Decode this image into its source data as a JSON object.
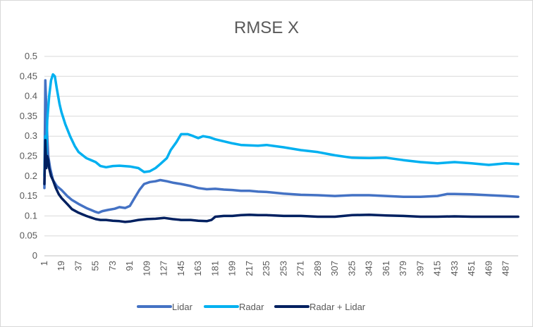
{
  "chart_data": {
    "type": "line",
    "title": "RMSE X",
    "xlabel": "",
    "ylabel": "",
    "ylim": [
      0,
      0.5
    ],
    "y_ticks": [
      "0",
      "0.05",
      "0.1",
      "0.15",
      "0.2",
      "0.25",
      "0.3",
      "0.35",
      "0.4",
      "0.45",
      "0.5"
    ],
    "x_range": [
      1,
      500
    ],
    "x_ticks": [
      "1",
      "19",
      "37",
      "55",
      "73",
      "91",
      "109",
      "127",
      "145",
      "163",
      "181",
      "199",
      "217",
      "235",
      "253",
      "271",
      "289",
      "307",
      "325",
      "343",
      "361",
      "379",
      "397",
      "415",
      "433",
      "451",
      "469",
      "487"
    ],
    "gridlines": true,
    "legend_position": "bottom",
    "series": [
      {
        "name": "Lidar",
        "color": "#4472c4",
        "points": [
          [
            1,
            0.17
          ],
          [
            2,
            0.44
          ],
          [
            3,
            0.37
          ],
          [
            4,
            0.3
          ],
          [
            5,
            0.25
          ],
          [
            7,
            0.22
          ],
          [
            10,
            0.19
          ],
          [
            14,
            0.175
          ],
          [
            19,
            0.165
          ],
          [
            25,
            0.15
          ],
          [
            30,
            0.14
          ],
          [
            37,
            0.13
          ],
          [
            45,
            0.12
          ],
          [
            50,
            0.115
          ],
          [
            55,
            0.11
          ],
          [
            58,
            0.108
          ],
          [
            62,
            0.112
          ],
          [
            68,
            0.115
          ],
          [
            75,
            0.118
          ],
          [
            80,
            0.122
          ],
          [
            86,
            0.12
          ],
          [
            91,
            0.125
          ],
          [
            96,
            0.145
          ],
          [
            101,
            0.165
          ],
          [
            106,
            0.18
          ],
          [
            112,
            0.185
          ],
          [
            118,
            0.187
          ],
          [
            123,
            0.19
          ],
          [
            130,
            0.187
          ],
          [
            137,
            0.183
          ],
          [
            145,
            0.18
          ],
          [
            155,
            0.175
          ],
          [
            163,
            0.17
          ],
          [
            172,
            0.167
          ],
          [
            181,
            0.168
          ],
          [
            190,
            0.166
          ],
          [
            199,
            0.165
          ],
          [
            208,
            0.163
          ],
          [
            217,
            0.163
          ],
          [
            226,
            0.161
          ],
          [
            235,
            0.16
          ],
          [
            253,
            0.156
          ],
          [
            271,
            0.153
          ],
          [
            289,
            0.152
          ],
          [
            307,
            0.15
          ],
          [
            325,
            0.152
          ],
          [
            343,
            0.152
          ],
          [
            361,
            0.15
          ],
          [
            379,
            0.148
          ],
          [
            397,
            0.148
          ],
          [
            415,
            0.15
          ],
          [
            425,
            0.155
          ],
          [
            433,
            0.155
          ],
          [
            451,
            0.154
          ],
          [
            469,
            0.152
          ],
          [
            487,
            0.15
          ],
          [
            500,
            0.148
          ]
        ]
      },
      {
        "name": "Radar",
        "color": "#00b0f0",
        "points": [
          [
            1,
            0.2
          ],
          [
            2,
            0.3
          ],
          [
            3,
            0.25
          ],
          [
            4,
            0.34
          ],
          [
            6,
            0.4
          ],
          [
            8,
            0.44
          ],
          [
            10,
            0.455
          ],
          [
            12,
            0.45
          ],
          [
            14,
            0.42
          ],
          [
            17,
            0.38
          ],
          [
            19,
            0.36
          ],
          [
            23,
            0.33
          ],
          [
            28,
            0.3
          ],
          [
            33,
            0.275
          ],
          [
            37,
            0.26
          ],
          [
            45,
            0.245
          ],
          [
            55,
            0.235
          ],
          [
            60,
            0.225
          ],
          [
            66,
            0.222
          ],
          [
            73,
            0.225
          ],
          [
            80,
            0.226
          ],
          [
            91,
            0.224
          ],
          [
            100,
            0.22
          ],
          [
            106,
            0.21
          ],
          [
            112,
            0.212
          ],
          [
            118,
            0.22
          ],
          [
            123,
            0.23
          ],
          [
            130,
            0.245
          ],
          [
            134,
            0.265
          ],
          [
            140,
            0.285
          ],
          [
            145,
            0.305
          ],
          [
            152,
            0.305
          ],
          [
            158,
            0.3
          ],
          [
            163,
            0.295
          ],
          [
            168,
            0.3
          ],
          [
            175,
            0.297
          ],
          [
            181,
            0.292
          ],
          [
            190,
            0.287
          ],
          [
            199,
            0.282
          ],
          [
            208,
            0.278
          ],
          [
            217,
            0.277
          ],
          [
            226,
            0.276
          ],
          [
            235,
            0.278
          ],
          [
            253,
            0.272
          ],
          [
            271,
            0.265
          ],
          [
            289,
            0.26
          ],
          [
            307,
            0.252
          ],
          [
            325,
            0.246
          ],
          [
            343,
            0.245
          ],
          [
            361,
            0.246
          ],
          [
            379,
            0.24
          ],
          [
            397,
            0.235
          ],
          [
            415,
            0.232
          ],
          [
            433,
            0.235
          ],
          [
            451,
            0.232
          ],
          [
            469,
            0.228
          ],
          [
            487,
            0.232
          ],
          [
            500,
            0.23
          ]
        ]
      },
      {
        "name": "Radar + Lidar",
        "color": "#002060",
        "points": [
          [
            1,
            0.18
          ],
          [
            2,
            0.29
          ],
          [
            3,
            0.22
          ],
          [
            4,
            0.25
          ],
          [
            5,
            0.24
          ],
          [
            6,
            0.22
          ],
          [
            8,
            0.2
          ],
          [
            10,
            0.19
          ],
          [
            13,
            0.17
          ],
          [
            16,
            0.155
          ],
          [
            19,
            0.145
          ],
          [
            25,
            0.13
          ],
          [
            30,
            0.117
          ],
          [
            37,
            0.108
          ],
          [
            45,
            0.1
          ],
          [
            55,
            0.092
          ],
          [
            60,
            0.09
          ],
          [
            66,
            0.09
          ],
          [
            73,
            0.088
          ],
          [
            80,
            0.087
          ],
          [
            86,
            0.085
          ],
          [
            91,
            0.086
          ],
          [
            100,
            0.09
          ],
          [
            109,
            0.092
          ],
          [
            118,
            0.093
          ],
          [
            127,
            0.095
          ],
          [
            136,
            0.092
          ],
          [
            145,
            0.09
          ],
          [
            155,
            0.09
          ],
          [
            163,
            0.088
          ],
          [
            172,
            0.087
          ],
          [
            177,
            0.09
          ],
          [
            181,
            0.098
          ],
          [
            190,
            0.1
          ],
          [
            199,
            0.1
          ],
          [
            208,
            0.102
          ],
          [
            217,
            0.103
          ],
          [
            226,
            0.102
          ],
          [
            235,
            0.102
          ],
          [
            253,
            0.1
          ],
          [
            271,
            0.1
          ],
          [
            289,
            0.098
          ],
          [
            307,
            0.098
          ],
          [
            325,
            0.102
          ],
          [
            343,
            0.103
          ],
          [
            361,
            0.101
          ],
          [
            379,
            0.1
          ],
          [
            397,
            0.098
          ],
          [
            415,
            0.098
          ],
          [
            433,
            0.099
          ],
          [
            451,
            0.098
          ],
          [
            469,
            0.098
          ],
          [
            487,
            0.098
          ],
          [
            500,
            0.098
          ]
        ]
      }
    ]
  }
}
